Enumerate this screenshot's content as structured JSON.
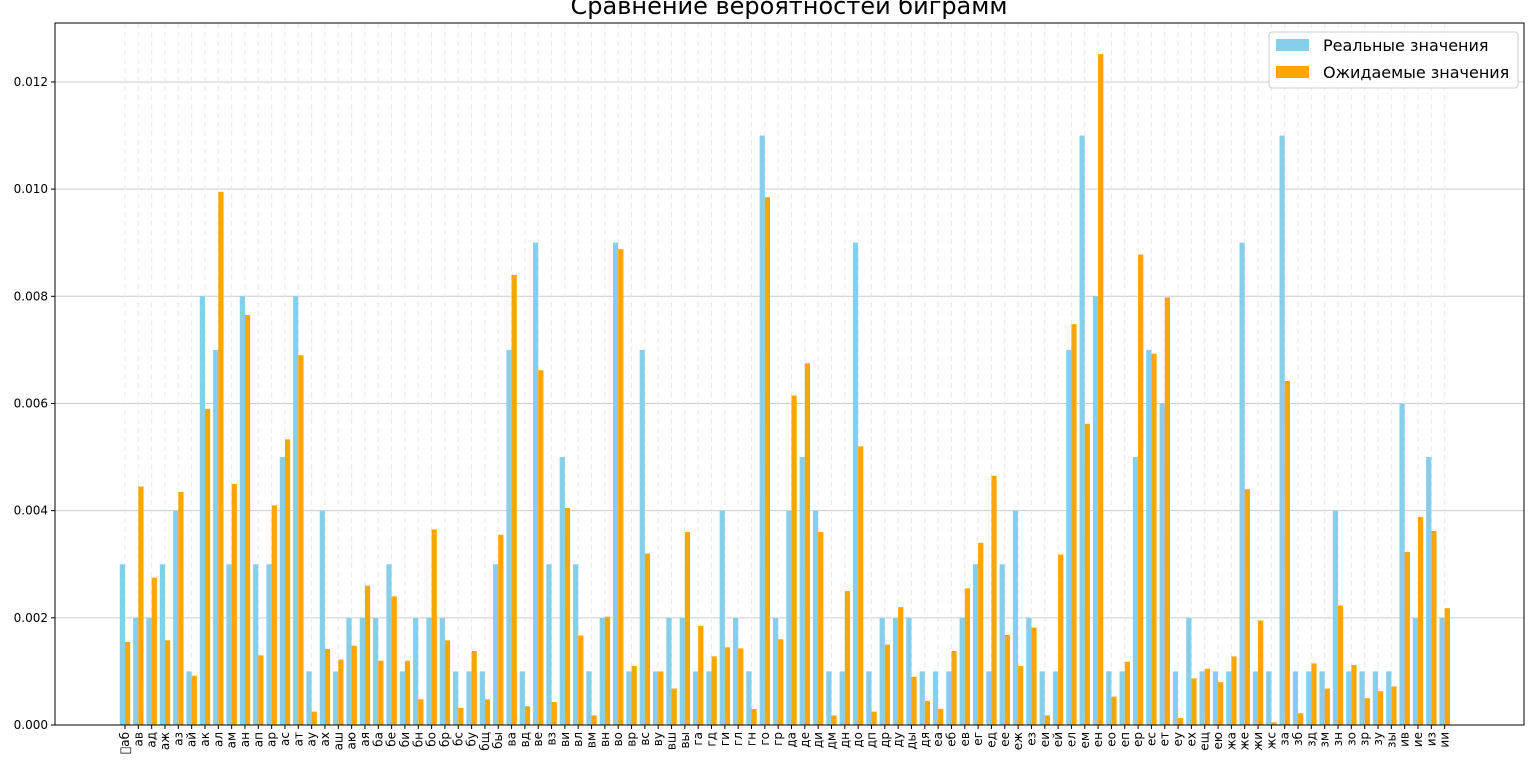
{
  "chart_data": {
    "type": "bar",
    "title": "Сравнение вероятностей биграмм",
    "xlabel": "",
    "ylabel": "",
    "ylim": [
      0,
      0.0131
    ],
    "yticks": [
      0.0,
      0.002,
      0.004,
      0.006,
      0.008,
      0.01,
      0.012
    ],
    "ytick_labels": [
      "0.000",
      "0.002",
      "0.004",
      "0.006",
      "0.008",
      "0.010",
      "0.012"
    ],
    "grid": "horizontal",
    "legend_position": "top-right",
    "categories": [
      "\u0000аб",
      "ав",
      "ад",
      "аж",
      "аз",
      "ай",
      "ак",
      "ал",
      "ам",
      "ан",
      "ап",
      "ар",
      "ас",
      "ат",
      "ау",
      "ах",
      "аш",
      "аю",
      "ая",
      "ба",
      "бе",
      "би",
      "бн",
      "бо",
      "бр",
      "бс",
      "бу",
      "бщ",
      "бы",
      "ва",
      "вд",
      "ве",
      "вз",
      "ви",
      "вл",
      "вм",
      "вн",
      "во",
      "вр",
      "вс",
      "ву",
      "вш",
      "вы",
      "га",
      "гд",
      "ги",
      "гл",
      "гн",
      "го",
      "гр",
      "да",
      "де",
      "ди",
      "дм",
      "дн",
      "до",
      "дп",
      "др",
      "ду",
      "ды",
      "дя",
      "еа",
      "еб",
      "ев",
      "ег",
      "ед",
      "ее",
      "еж",
      "ез",
      "еи",
      "ей",
      "ел",
      "ем",
      "ен",
      "ео",
      "еп",
      "ер",
      "ес",
      "ет",
      "еу",
      "ех",
      "ещ",
      "ею",
      "жа",
      "же",
      "жи",
      "жс",
      "за",
      "зб",
      "зд",
      "зм",
      "зн",
      "зо",
      "зр",
      "зу",
      "зы",
      "ив",
      "ие",
      "из",
      "ии"
    ],
    "series": [
      {
        "name": "Реальные значения",
        "color": "#87ceeb",
        "values": [
          0.003,
          0.002,
          0.002,
          0.003,
          0.004,
          0.001,
          0.008,
          0.007,
          0.003,
          0.008,
          0.003,
          0.003,
          0.005,
          0.008,
          0.001,
          0.004,
          0.001,
          0.002,
          0.002,
          0.002,
          0.003,
          0.001,
          0.002,
          0.002,
          0.002,
          0.001,
          0.001,
          0.001,
          0.003,
          0.007,
          0.001,
          0.009,
          0.003,
          0.005,
          0.003,
          0.001,
          0.002,
          0.009,
          0.001,
          0.007,
          0.001,
          0.002,
          0.002,
          0.001,
          0.001,
          0.004,
          0.002,
          0.001,
          0.011,
          0.002,
          0.004,
          0.005,
          0.004,
          0.001,
          0.001,
          0.009,
          0.001,
          0.002,
          0.002,
          0.002,
          0.001,
          0.001,
          0.001,
          0.002,
          0.003,
          0.001,
          0.003,
          0.004,
          0.002,
          0.001,
          0.001,
          0.007,
          0.011,
          0.008,
          0.001,
          0.001,
          0.005,
          0.007,
          0.006,
          0.001,
          0.002,
          0.001,
          0.001,
          0.001,
          0.009,
          0.001,
          0.001,
          0.011,
          0.001,
          0.001,
          0.001,
          0.004,
          0.001,
          0.001,
          0.001,
          0.001,
          0.006,
          0.002,
          0.005,
          0.002
        ]
      },
      {
        "name": "Ожидаемые значения",
        "color": "#ffa500",
        "values": [
          0.00155,
          0.00445,
          0.00275,
          0.00158,
          0.00435,
          0.00092,
          0.0059,
          0.00995,
          0.0045,
          0.00765,
          0.0013,
          0.0041,
          0.00533,
          0.0069,
          0.00025,
          0.00142,
          0.00122,
          0.00148,
          0.0026,
          0.0012,
          0.0024,
          0.0012,
          0.00048,
          0.00365,
          0.00158,
          0.00032,
          0.00138,
          0.00048,
          0.00355,
          0.0084,
          0.00035,
          0.00662,
          0.00043,
          0.00405,
          0.00167,
          0.00018,
          0.00202,
          0.00888,
          0.0011,
          0.0032,
          0.001,
          0.00068,
          0.0036,
          0.00185,
          0.00128,
          0.00145,
          0.00143,
          0.0003,
          0.00985,
          0.0016,
          0.00615,
          0.00675,
          0.0036,
          0.00018,
          0.0025,
          0.0052,
          0.00025,
          0.0015,
          0.0022,
          0.0009,
          0.00045,
          0.0003,
          0.00138,
          0.00255,
          0.0034,
          0.00465,
          0.00168,
          0.0011,
          0.00182,
          0.00018,
          0.00318,
          0.00748,
          0.00562,
          0.01252,
          0.00053,
          0.00118,
          0.00878,
          0.00693,
          0.00798,
          0.00013,
          0.00087,
          0.00105,
          0.0008,
          0.00128,
          0.0044,
          0.00195,
          5e-05,
          0.00642,
          0.00022,
          0.00115,
          0.00068,
          0.00223,
          0.00112,
          0.0005,
          0.00063,
          0.00072,
          0.00323,
          0.00388,
          0.00362,
          0.00218
        ]
      }
    ]
  }
}
